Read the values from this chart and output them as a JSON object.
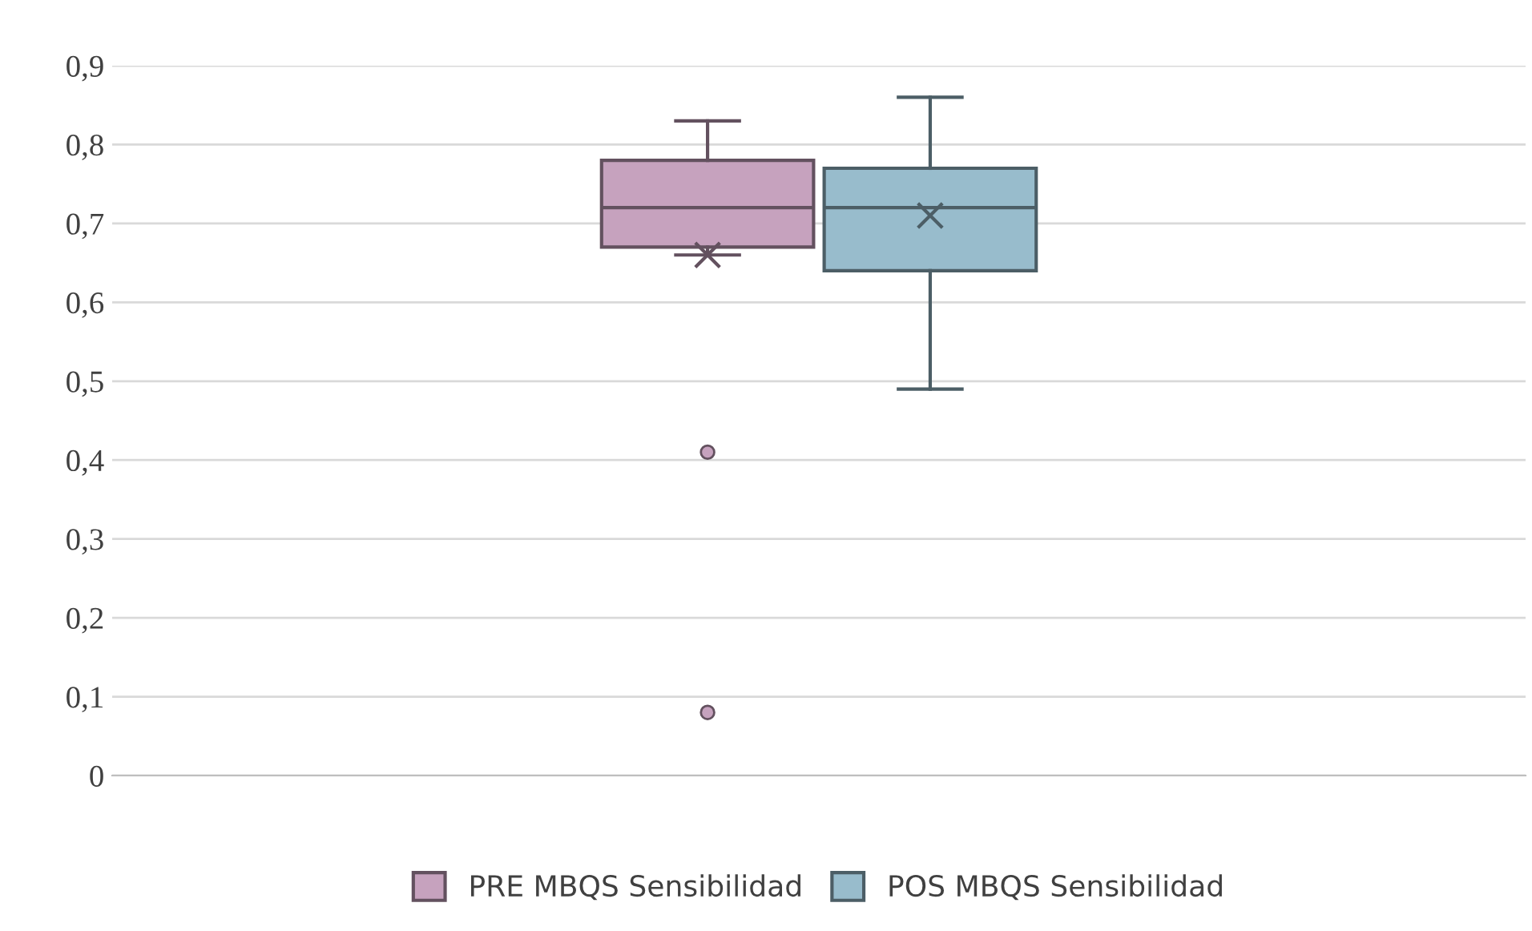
{
  "chart_data": {
    "type": "box",
    "categories": [
      null
    ],
    "series": [
      {
        "name": "PRE MBQS Sensibilidad",
        "color": "#c6a2be",
        "boxes": [
          {
            "low": 0.66,
            "q1": 0.67,
            "median": 0.72,
            "q3": 0.78,
            "high": 0.83,
            "mean": 0.66,
            "outliers": [
              0.41,
              0.08
            ]
          }
        ]
      },
      {
        "name": "POS MBQS Sensibilidad",
        "color": "#98bccc",
        "boxes": [
          {
            "low": 0.49,
            "q1": 0.64,
            "median": 0.72,
            "q3": 0.77,
            "high": 0.86,
            "mean": 0.71
          }
        ]
      }
    ],
    "ylim": [
      0,
      0.9
    ],
    "yticks": [
      {
        "value": 0,
        "label": "0"
      },
      {
        "value": 0.1,
        "label": "0,1"
      },
      {
        "value": 0.2,
        "label": "0,2"
      },
      {
        "value": 0.3,
        "label": "0,3"
      },
      {
        "value": 0.4,
        "label": "0,4"
      },
      {
        "value": 0.5,
        "label": "0,5"
      },
      {
        "value": 0.6,
        "label": "0,6"
      },
      {
        "value": 0.7,
        "label": "0,7"
      },
      {
        "value": 0.8,
        "label": "0,8"
      },
      {
        "value": 0.9,
        "label": "0,9"
      }
    ],
    "grid": "y",
    "legend": "bottom"
  }
}
